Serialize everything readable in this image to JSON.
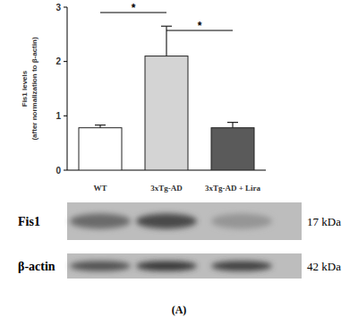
{
  "chart_data": {
    "type": "bar",
    "ylabel": "Fis1 levels (after normalization to β-actin)",
    "categories": [
      "WT",
      "3xTg-AD",
      "3xTg-AD + Lira"
    ],
    "values": [
      0.78,
      2.1,
      0.78
    ],
    "errors": [
      0.05,
      0.55,
      0.1
    ],
    "colors": [
      "#ffffff",
      "#d4d4d4",
      "#5a5a5a"
    ],
    "ylim": [
      0,
      3
    ],
    "yticks": [
      0,
      1,
      2,
      3
    ],
    "annotations": [
      {
        "text": "*",
        "between": [
          0,
          1
        ]
      },
      {
        "text": "*",
        "between": [
          1,
          2
        ]
      }
    ]
  },
  "blot": {
    "rows": [
      {
        "label": "Fis1",
        "size": "17 kDa"
      },
      {
        "label": "β-actin",
        "size": "42 kDa"
      }
    ]
  },
  "panel_label": "(A)"
}
